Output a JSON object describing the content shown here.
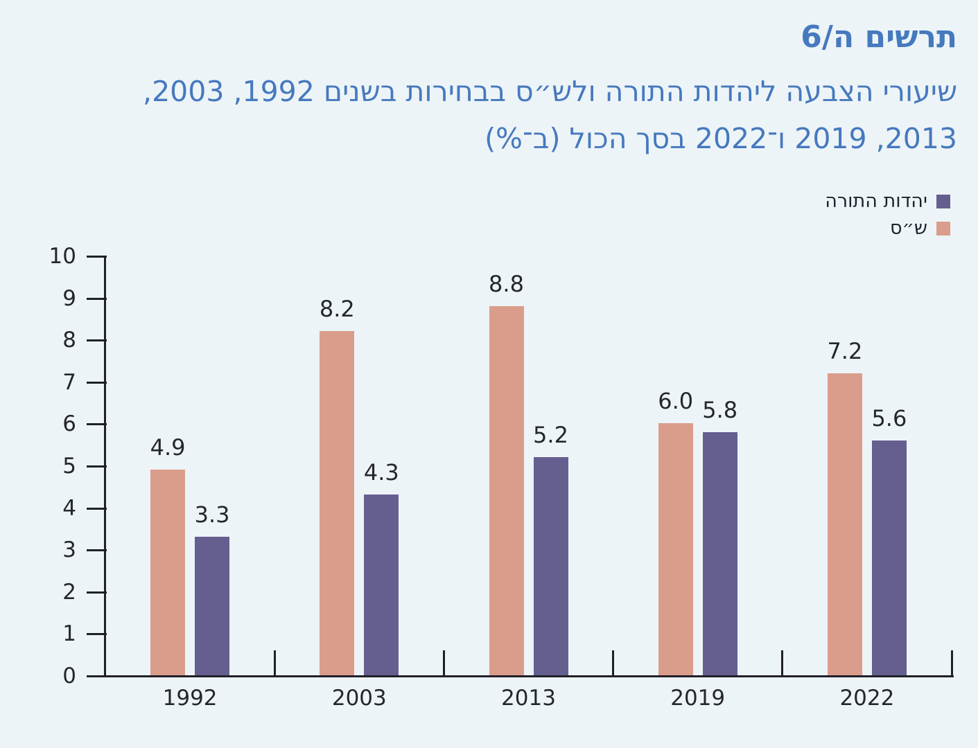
{
  "title": "תרשים ה/6",
  "subtitle": {
    "line1": "שיעורי הצבעה ליהדות התורה ולש״ס בבחירות בשנים 1992, 2003,",
    "line2": "2013, 2019 ו־2022 בסך הכול (ב־%)"
  },
  "colors": {
    "accent_blue": "#4679BE",
    "utj_purple": "#655F90",
    "shas_salmon": "#DB9D8B",
    "axis": "#202028",
    "text_dark": "#25262C",
    "background": "#EDF4F7"
  },
  "legend": {
    "position": "top-right",
    "items": [
      {
        "label": "יהדות התורה",
        "color": "#655F90"
      },
      {
        "label": "ש״ס",
        "color": "#DB9D8B"
      }
    ]
  },
  "chart_data": {
    "type": "bar",
    "categories": [
      "1992",
      "2003",
      "2013",
      "2019",
      "2022"
    ],
    "series": [
      {
        "name": "יהדות התורה",
        "key": "utj",
        "color": "#655F90",
        "values": [
          3.3,
          4.3,
          5.2,
          5.8,
          5.6
        ]
      },
      {
        "name": "ש״ס",
        "key": "shas",
        "color": "#DB9D8B",
        "values": [
          4.9,
          8.2,
          8.8,
          6.0,
          7.2
        ]
      }
    ],
    "title": "שיעורי הצבעה ליהדות התורה ולש״ס בבחירות בשנים 1992, 2003, 2013, 2019 ו־2022 בסך הכול (ב־%)",
    "xlabel": "",
    "ylabel": "",
    "ylim": [
      0,
      10
    ],
    "yticks": [
      0,
      1,
      2,
      3,
      4,
      5,
      6,
      7,
      8,
      9,
      10
    ],
    "grid": false,
    "legend_position": "top-right",
    "value_labels": true,
    "value_label_format": "0.0",
    "direction": "rtl"
  }
}
